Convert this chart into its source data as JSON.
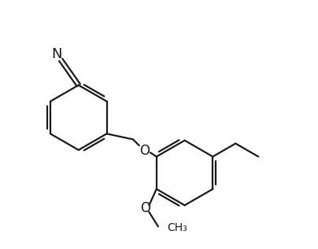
{
  "background_color": "#ffffff",
  "line_color": "#1a1a1a",
  "line_width": 1.6,
  "fig_width": 4.04,
  "fig_height": 3.17,
  "dpi": 100,
  "xlim": [
    0,
    10
  ],
  "ylim": [
    0,
    7.85
  ]
}
